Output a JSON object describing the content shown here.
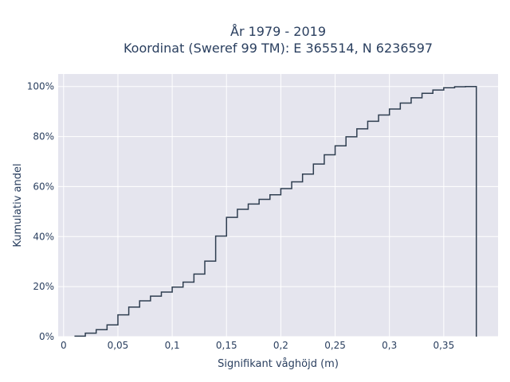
{
  "chart_data": {
    "type": "line",
    "line_shape": "step",
    "title_line1": "År 1979 - 2019",
    "title_line2": "Koordinat (Sweref 99 TM): E 365514, N 6236597",
    "xlabel": "Signifikant våghöjd (m)",
    "ylabel": "Kumulativ andel",
    "xlim": [
      -0.005,
      0.4
    ],
    "ylim": [
      0,
      1.05
    ],
    "x_ticks": [
      0,
      0.05,
      0.1,
      0.15,
      0.2,
      0.25,
      0.3,
      0.35
    ],
    "x_tick_labels": [
      "0",
      "0,05",
      "0,1",
      "0,15",
      "0,2",
      "0,25",
      "0,3",
      "0,35"
    ],
    "y_ticks": [
      0,
      0.2,
      0.4,
      0.6,
      0.8,
      1.0
    ],
    "y_tick_labels": [
      "0%",
      "20%",
      "40%",
      "60%",
      "80%",
      "100%"
    ],
    "grid": true,
    "colors": {
      "plot_bg": "#e5e5ee",
      "grid": "#ffffff",
      "line": "#2f3e50"
    },
    "series": [
      {
        "x": [
          0.01,
          0.02,
          0.03,
          0.04,
          0.05,
          0.06,
          0.07,
          0.08,
          0.09,
          0.1,
          0.11,
          0.12,
          0.13,
          0.14,
          0.15,
          0.16,
          0.17,
          0.18,
          0.19,
          0.2,
          0.21,
          0.22,
          0.23,
          0.24,
          0.25,
          0.26,
          0.27,
          0.28,
          0.29,
          0.3,
          0.31,
          0.32,
          0.33,
          0.34,
          0.35,
          0.36,
          0.37,
          0.38,
          0.38
        ],
        "y": [
          0.002,
          0.014,
          0.028,
          0.047,
          0.087,
          0.118,
          0.143,
          0.162,
          0.178,
          0.198,
          0.218,
          0.25,
          0.302,
          0.402,
          0.477,
          0.509,
          0.53,
          0.549,
          0.567,
          0.592,
          0.619,
          0.65,
          0.69,
          0.727,
          0.763,
          0.799,
          0.831,
          0.861,
          0.886,
          0.91,
          0.934,
          0.955,
          0.973,
          0.986,
          0.995,
          0.999,
          1.0,
          1.0,
          0.0
        ]
      }
    ]
  }
}
